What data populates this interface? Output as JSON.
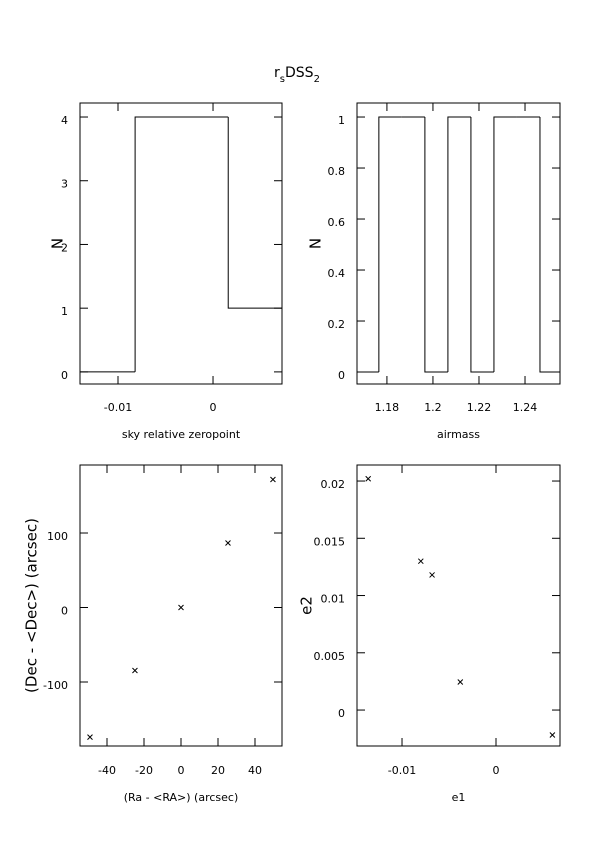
{
  "title": [
    {
      "text": "r"
    },
    {
      "text": "s",
      "sub": true
    },
    {
      "text": "DSS"
    },
    {
      "text": "2",
      "sub": true
    }
  ],
  "chart_data": [
    {
      "type": "histogram",
      "x_label": "sky relative zeropoint",
      "y_label": "N",
      "bins": [
        -0.014,
        -0.0082,
        0.0016,
        0.0073
      ],
      "counts": [
        0,
        4,
        1
      ],
      "xlim": [
        -0.014,
        0.00726
      ],
      "xticks": [
        -0.01,
        0
      ],
      "ylim": [
        -0.19,
        4.22
      ],
      "yticks": [
        0,
        1,
        2,
        3,
        4
      ],
      "color": "#000000"
    },
    {
      "type": "histogram",
      "x_label": "airmass",
      "y_label": "N",
      "bins": [
        1.1665,
        1.1765,
        1.1865,
        1.1965,
        1.2065,
        1.2165,
        1.2265,
        1.2365,
        1.2465,
        1.2565
      ],
      "counts": [
        0,
        1,
        1,
        0,
        1,
        0,
        1,
        1,
        0
      ],
      "xlim": [
        1.167,
        1.2552
      ],
      "xticks": [
        1.18,
        1.2,
        1.22,
        1.24
      ],
      "ylim": [
        -0.047,
        1.055
      ],
      "yticks": [
        0,
        0.2,
        0.4,
        0.6,
        0.8,
        1
      ],
      "color": "#000000"
    },
    {
      "type": "scatter",
      "x_label": "(Ra - <RA>) (arcsec)",
      "y_label": "(Dec - <Dec>) (arcsec)",
      "x": [
        -49.2,
        -24.9,
        0,
        25.4,
        49.7
      ],
      "y": [
        -174,
        -84.6,
        0,
        86.6,
        171.8
      ],
      "xlim": [
        -54.6,
        54.6
      ],
      "xticks": [
        -40,
        -20,
        0,
        20,
        40
      ],
      "ylim": [
        -185.9,
        191.3
      ],
      "yticks": [
        -100,
        0,
        100
      ],
      "color": "#000000"
    },
    {
      "type": "scatter",
      "x_label": "e1",
      "y_label": "e2",
      "x": [
        -0.0136,
        -0.008,
        -0.0068,
        -0.0038,
        0.006
      ],
      "y": [
        0.0202,
        0.013,
        0.0118,
        0.00245,
        -0.00218
      ],
      "xlim": [
        -0.01479,
        0.00681
      ],
      "xticks": [
        -0.01,
        0
      ],
      "ylim": [
        -0.00314,
        0.0214
      ],
      "yticks": [
        0,
        0.005,
        0.01,
        0.015,
        0.02
      ],
      "color": "#000000"
    }
  ]
}
